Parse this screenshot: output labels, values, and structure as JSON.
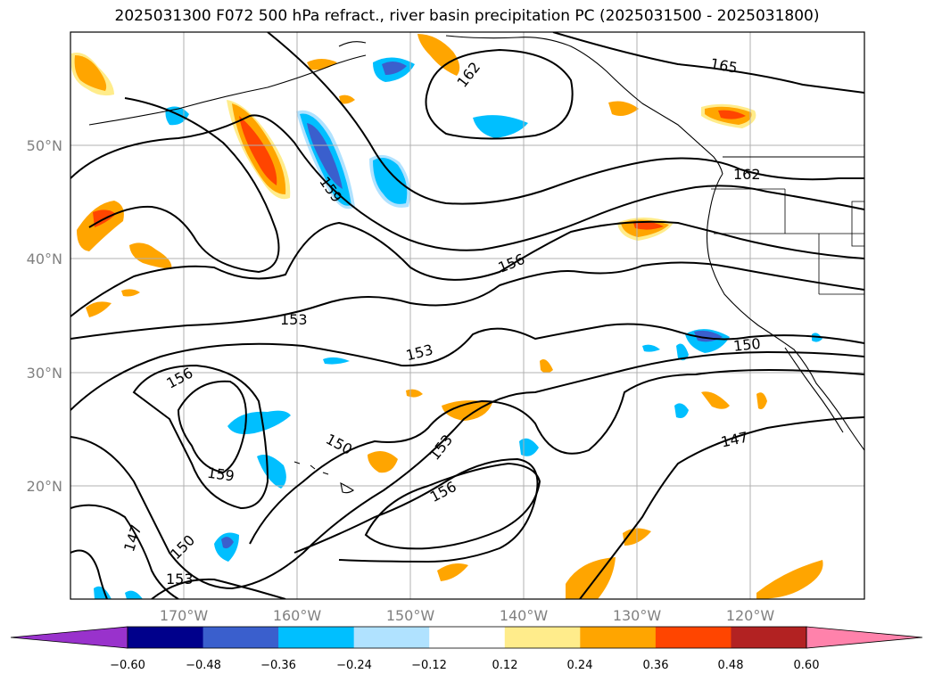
{
  "title": "2025031300 F072 500 hPa refract., river basin precipitation PC (2025031500 - 2025031800)",
  "lat_labels": [
    "50°N",
    "40°N",
    "30°N",
    "20°N"
  ],
  "lon_labels": [
    "170°W",
    "160°W",
    "150°W",
    "140°W",
    "130°W",
    "120°W"
  ],
  "contour_labels": [
    "165",
    "162",
    "162",
    "159",
    "159",
    "156",
    "156",
    "156",
    "153",
    "153",
    "153",
    "153",
    "150",
    "150",
    "150",
    "147",
    "147"
  ],
  "colorbar": {
    "ticks": [
      "−0.60",
      "−0.48",
      "−0.36",
      "−0.24",
      "−0.12",
      "0.12",
      "0.24",
      "0.36",
      "0.48",
      "0.60"
    ],
    "colors": [
      "#9932cc",
      "#00008b",
      "#3a5fcd",
      "#00bfff",
      "#b0e2ff",
      "#ffffff",
      "#ffec8b",
      "#ffa500",
      "#ff4500",
      "#b22222",
      "#ff82ab"
    ]
  }
}
